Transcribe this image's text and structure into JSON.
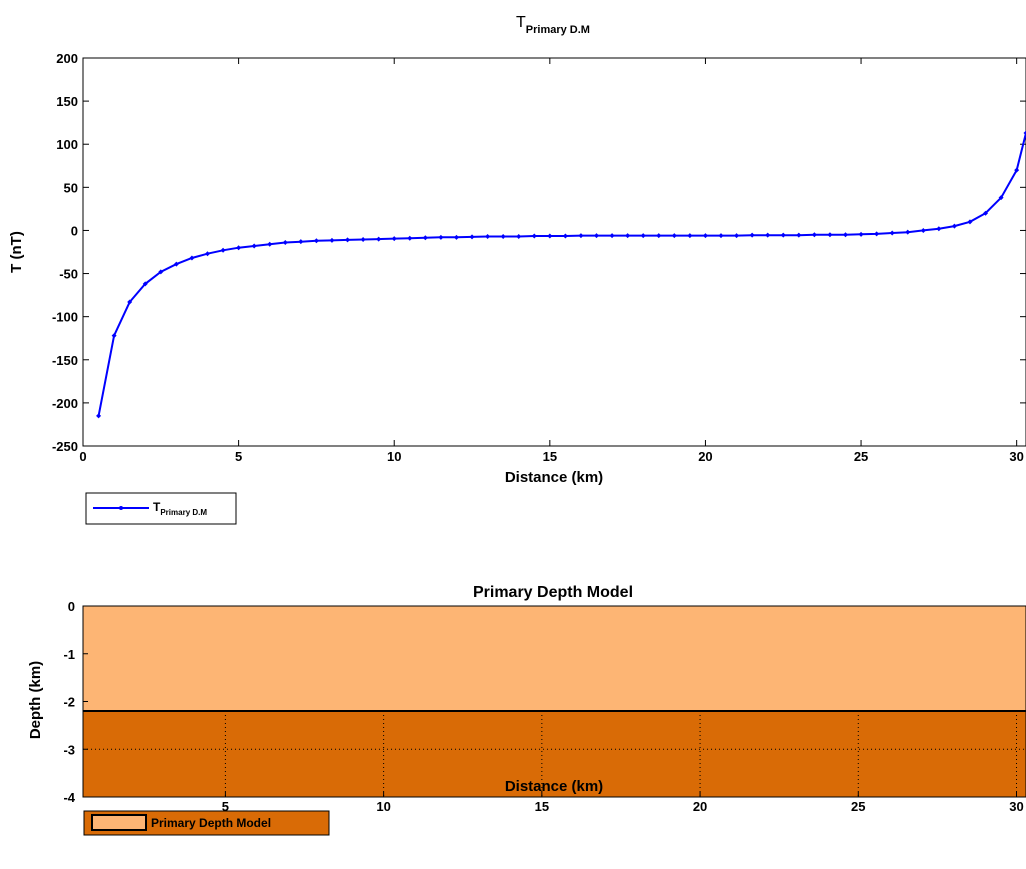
{
  "chart_data": [
    {
      "type": "line",
      "title": "T",
      "title_sub": "Primary D.M",
      "xlabel": "Distance (km)",
      "ylabel": "T (nT)",
      "xlim": [
        0,
        30.3
      ],
      "ylim": [
        -250,
        200
      ],
      "xticks": [
        0,
        5,
        10,
        15,
        20,
        25,
        30
      ],
      "yticks": [
        -250,
        -200,
        -150,
        -100,
        -50,
        0,
        50,
        100,
        150,
        200
      ],
      "grid": false,
      "legend": "bottom-left-outside",
      "line_color": "#0000ff",
      "series": [
        {
          "name": "T",
          "name_sub": "Primary D.M",
          "x": [
            0.5,
            1,
            1.5,
            2,
            2.5,
            3,
            3.5,
            4,
            4.5,
            5,
            5.5,
            6,
            6.5,
            7,
            7.5,
            8,
            8.5,
            9,
            9.5,
            10,
            10.5,
            11,
            11.5,
            12,
            12.5,
            13,
            13.5,
            14,
            14.5,
            15,
            15.5,
            16,
            16.5,
            17,
            17.5,
            18,
            18.5,
            19,
            19.5,
            20,
            20.5,
            21,
            21.5,
            22,
            22.5,
            23,
            23.5,
            24,
            24.5,
            25,
            25.5,
            26,
            26.5,
            27,
            27.5,
            28,
            28.5,
            29,
            29.5,
            30,
            30.3
          ],
          "y": [
            -215,
            -122,
            -83,
            -62,
            -48,
            -39,
            -32,
            -27,
            -23,
            -20,
            -18,
            -16,
            -14,
            -13,
            -12,
            -11.5,
            -11,
            -10.5,
            -10,
            -9.5,
            -9,
            -8.5,
            -8,
            -8,
            -7.5,
            -7,
            -7,
            -7,
            -6.5,
            -6.5,
            -6.5,
            -6,
            -6,
            -6,
            -6,
            -6,
            -6,
            -6,
            -6,
            -6,
            -6,
            -6,
            -5.5,
            -5.5,
            -5.5,
            -5.5,
            -5,
            -5,
            -5,
            -4.5,
            -4,
            -3,
            -2,
            0,
            2,
            5,
            10,
            20,
            38,
            70,
            113
          ]
        }
      ]
    },
    {
      "type": "area",
      "title": "Primary Depth Model",
      "xlabel": "Distance (km)",
      "ylabel": "Depth (km)",
      "xlim": [
        0.5,
        30.3
      ],
      "ylim": [
        -4,
        0
      ],
      "xticks": [
        5,
        10,
        15,
        20,
        25,
        30
      ],
      "yticks": [
        -4,
        -3,
        -2,
        -1,
        0
      ],
      "grid": true,
      "legend": "bottom-left-outside",
      "layers": [
        {
          "name": "Primary Depth Model",
          "top": 0,
          "bottom": -2.2,
          "color": "#fdb574"
        },
        {
          "name": "",
          "top": -2.2,
          "bottom": -4,
          "color": "#d96b06"
        }
      ],
      "interface_depth": -2.2
    }
  ]
}
